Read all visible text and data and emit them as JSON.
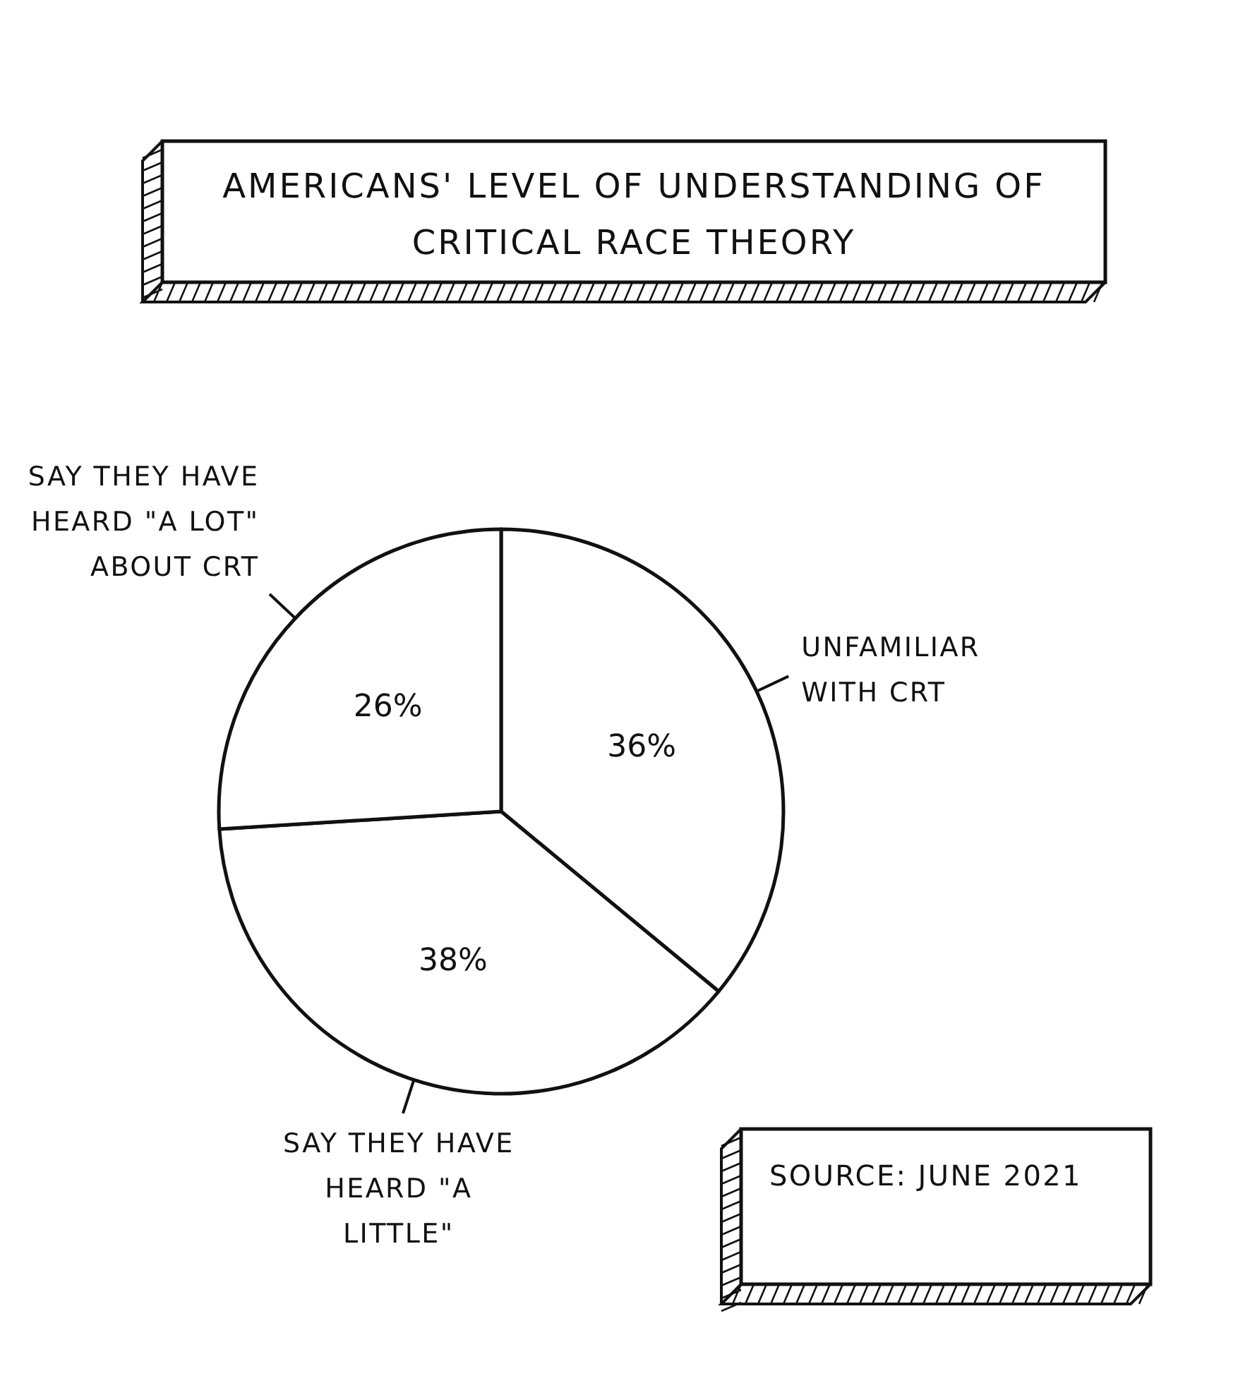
{
  "chart_data": {
    "type": "pie",
    "title": "AMERICANS' LEVEL OF UNDERSTANDING OF CRITICAL RACE THEORY",
    "categories": [
      "UNFAMILIAR WITH CRT",
      "SAY THEY HAVE HEARD \"A LITTLE\"",
      "SAY THEY HAVE HEARD \"A LOT\" ABOUT CRT"
    ],
    "values": [
      36,
      38,
      26
    ],
    "colors": [
      "#ffffff",
      "#ffffff",
      "#ffffff"
    ],
    "value_labels": [
      "36%",
      "38%",
      "26%"
    ],
    "annotations": [
      "SOURCE: JUNE 2021"
    ]
  }
}
